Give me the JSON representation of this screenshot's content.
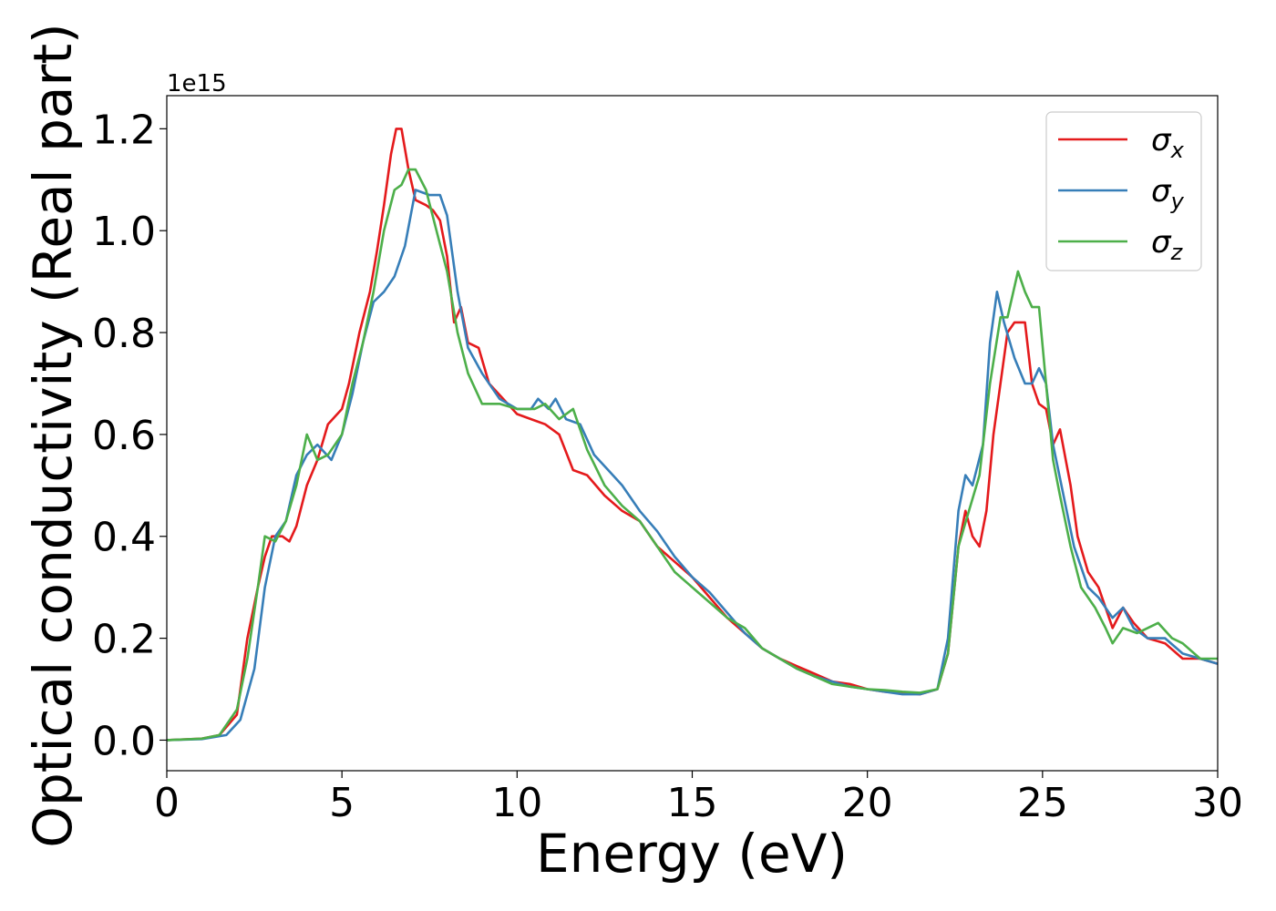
{
  "chart_data": {
    "type": "line",
    "title": "",
    "xlabel": "Energy (eV)",
    "ylabel": "Optical conductivity (Real part)",
    "y_offset_label": "1e15",
    "xlim": [
      0,
      30
    ],
    "ylim": [
      -0.06,
      1.265
    ],
    "xticks": [
      0,
      5,
      10,
      15,
      20,
      25,
      30
    ],
    "xtick_labels": [
      "0",
      "5",
      "10",
      "15",
      "20",
      "25",
      "30"
    ],
    "yticks": [
      0.0,
      0.2,
      0.4,
      0.6,
      0.8,
      1.0,
      1.2
    ],
    "ytick_labels": [
      "0.0",
      "0.2",
      "0.4",
      "0.6",
      "0.8",
      "1.0",
      "1.2"
    ],
    "grid": false,
    "legend_position": "top-right",
    "series": [
      {
        "name": "σx",
        "legend_base": "σ",
        "legend_sub": "x",
        "color": "#e41a1c",
        "points": [
          [
            0,
            0
          ],
          [
            1,
            0.003
          ],
          [
            1.5,
            0.01
          ],
          [
            2,
            0.05
          ],
          [
            2.3,
            0.2
          ],
          [
            2.6,
            0.3
          ],
          [
            2.8,
            0.36
          ],
          [
            3.0,
            0.4
          ],
          [
            3.3,
            0.4
          ],
          [
            3.5,
            0.39
          ],
          [
            3.7,
            0.42
          ],
          [
            4.0,
            0.5
          ],
          [
            4.3,
            0.55
          ],
          [
            4.6,
            0.62
          ],
          [
            5.0,
            0.65
          ],
          [
            5.2,
            0.7
          ],
          [
            5.5,
            0.8
          ],
          [
            5.8,
            0.88
          ],
          [
            6.0,
            0.96
          ],
          [
            6.2,
            1.05
          ],
          [
            6.4,
            1.15
          ],
          [
            6.55,
            1.2
          ],
          [
            6.7,
            1.2
          ],
          [
            6.9,
            1.12
          ],
          [
            7.1,
            1.06
          ],
          [
            7.4,
            1.05
          ],
          [
            7.6,
            1.04
          ],
          [
            7.8,
            1.02
          ],
          [
            8.0,
            0.95
          ],
          [
            8.2,
            0.82
          ],
          [
            8.4,
            0.85
          ],
          [
            8.6,
            0.78
          ],
          [
            8.9,
            0.77
          ],
          [
            9.2,
            0.7
          ],
          [
            9.6,
            0.67
          ],
          [
            10.0,
            0.64
          ],
          [
            10.4,
            0.63
          ],
          [
            10.8,
            0.62
          ],
          [
            11.2,
            0.6
          ],
          [
            11.6,
            0.53
          ],
          [
            12.0,
            0.52
          ],
          [
            12.5,
            0.48
          ],
          [
            13.0,
            0.45
          ],
          [
            13.5,
            0.43
          ],
          [
            14.0,
            0.38
          ],
          [
            14.5,
            0.35
          ],
          [
            15.0,
            0.32
          ],
          [
            15.5,
            0.28
          ],
          [
            16.0,
            0.24
          ],
          [
            16.5,
            0.21
          ],
          [
            17.0,
            0.18
          ],
          [
            17.5,
            0.16
          ],
          [
            18.0,
            0.145
          ],
          [
            18.5,
            0.13
          ],
          [
            19.0,
            0.115
          ],
          [
            19.5,
            0.11
          ],
          [
            20.0,
            0.1
          ],
          [
            20.5,
            0.095
          ],
          [
            21.0,
            0.093
          ],
          [
            21.5,
            0.09
          ],
          [
            22.0,
            0.1
          ],
          [
            22.3,
            0.17
          ],
          [
            22.6,
            0.38
          ],
          [
            22.8,
            0.45
          ],
          [
            23.0,
            0.4
          ],
          [
            23.2,
            0.38
          ],
          [
            23.4,
            0.45
          ],
          [
            23.6,
            0.6
          ],
          [
            23.8,
            0.7
          ],
          [
            24.0,
            0.8
          ],
          [
            24.2,
            0.82
          ],
          [
            24.5,
            0.82
          ],
          [
            24.7,
            0.7
          ],
          [
            24.9,
            0.66
          ],
          [
            25.1,
            0.65
          ],
          [
            25.3,
            0.58
          ],
          [
            25.5,
            0.61
          ],
          [
            25.8,
            0.5
          ],
          [
            26.0,
            0.4
          ],
          [
            26.3,
            0.33
          ],
          [
            26.6,
            0.3
          ],
          [
            27.0,
            0.22
          ],
          [
            27.3,
            0.26
          ],
          [
            27.6,
            0.23
          ],
          [
            28.0,
            0.2
          ],
          [
            28.5,
            0.19
          ],
          [
            29.0,
            0.16
          ],
          [
            29.5,
            0.16
          ],
          [
            30.0,
            0.15
          ]
        ]
      },
      {
        "name": "σy",
        "legend_base": "σ",
        "legend_sub": "y",
        "color": "#377eb8",
        "points": [
          [
            0,
            0
          ],
          [
            1,
            0.002
          ],
          [
            1.7,
            0.01
          ],
          [
            2.1,
            0.04
          ],
          [
            2.5,
            0.14
          ],
          [
            2.8,
            0.3
          ],
          [
            3.1,
            0.4
          ],
          [
            3.4,
            0.43
          ],
          [
            3.7,
            0.52
          ],
          [
            4.0,
            0.56
          ],
          [
            4.3,
            0.58
          ],
          [
            4.7,
            0.55
          ],
          [
            5.0,
            0.6
          ],
          [
            5.3,
            0.68
          ],
          [
            5.6,
            0.78
          ],
          [
            5.9,
            0.86
          ],
          [
            6.2,
            0.88
          ],
          [
            6.5,
            0.91
          ],
          [
            6.8,
            0.97
          ],
          [
            7.1,
            1.08
          ],
          [
            7.5,
            1.07
          ],
          [
            7.8,
            1.07
          ],
          [
            8.0,
            1.03
          ],
          [
            8.3,
            0.88
          ],
          [
            8.6,
            0.77
          ],
          [
            9.0,
            0.72
          ],
          [
            9.5,
            0.67
          ],
          [
            10.0,
            0.65
          ],
          [
            10.4,
            0.65
          ],
          [
            10.6,
            0.67
          ],
          [
            10.9,
            0.65
          ],
          [
            11.1,
            0.67
          ],
          [
            11.4,
            0.63
          ],
          [
            11.8,
            0.62
          ],
          [
            12.2,
            0.56
          ],
          [
            12.6,
            0.53
          ],
          [
            13.0,
            0.5
          ],
          [
            13.5,
            0.45
          ],
          [
            14.0,
            0.41
          ],
          [
            14.5,
            0.36
          ],
          [
            15.0,
            0.32
          ],
          [
            15.5,
            0.29
          ],
          [
            16.0,
            0.25
          ],
          [
            16.5,
            0.21
          ],
          [
            17.0,
            0.18
          ],
          [
            17.5,
            0.16
          ],
          [
            18.0,
            0.14
          ],
          [
            18.5,
            0.125
          ],
          [
            19.0,
            0.115
          ],
          [
            19.5,
            0.105
          ],
          [
            20.0,
            0.1
          ],
          [
            20.5,
            0.095
          ],
          [
            21.0,
            0.09
          ],
          [
            21.5,
            0.09
          ],
          [
            22.0,
            0.1
          ],
          [
            22.3,
            0.2
          ],
          [
            22.6,
            0.45
          ],
          [
            22.8,
            0.52
          ],
          [
            23.0,
            0.5
          ],
          [
            23.3,
            0.58
          ],
          [
            23.5,
            0.78
          ],
          [
            23.7,
            0.88
          ],
          [
            23.9,
            0.82
          ],
          [
            24.2,
            0.75
          ],
          [
            24.5,
            0.7
          ],
          [
            24.7,
            0.7
          ],
          [
            24.9,
            0.73
          ],
          [
            25.1,
            0.7
          ],
          [
            25.3,
            0.58
          ],
          [
            25.6,
            0.48
          ],
          [
            25.9,
            0.38
          ],
          [
            26.3,
            0.3
          ],
          [
            26.6,
            0.28
          ],
          [
            27.0,
            0.24
          ],
          [
            27.3,
            0.26
          ],
          [
            27.6,
            0.22
          ],
          [
            28.0,
            0.2
          ],
          [
            28.5,
            0.2
          ],
          [
            29.0,
            0.17
          ],
          [
            29.5,
            0.16
          ],
          [
            30.0,
            0.15
          ]
        ]
      },
      {
        "name": "σz",
        "legend_base": "σ",
        "legend_sub": "z",
        "color": "#4daf4a",
        "points": [
          [
            0,
            0
          ],
          [
            1,
            0.003
          ],
          [
            1.5,
            0.01
          ],
          [
            2.0,
            0.06
          ],
          [
            2.3,
            0.16
          ],
          [
            2.6,
            0.3
          ],
          [
            2.8,
            0.4
          ],
          [
            3.1,
            0.39
          ],
          [
            3.4,
            0.43
          ],
          [
            3.7,
            0.5
          ],
          [
            4.0,
            0.6
          ],
          [
            4.3,
            0.55
          ],
          [
            4.6,
            0.56
          ],
          [
            5.0,
            0.6
          ],
          [
            5.3,
            0.7
          ],
          [
            5.6,
            0.78
          ],
          [
            5.9,
            0.88
          ],
          [
            6.2,
            1.0
          ],
          [
            6.5,
            1.08
          ],
          [
            6.7,
            1.09
          ],
          [
            6.9,
            1.12
          ],
          [
            7.1,
            1.12
          ],
          [
            7.4,
            1.08
          ],
          [
            7.7,
            1.0
          ],
          [
            8.0,
            0.92
          ],
          [
            8.3,
            0.8
          ],
          [
            8.6,
            0.72
          ],
          [
            9.0,
            0.66
          ],
          [
            9.5,
            0.66
          ],
          [
            10.0,
            0.65
          ],
          [
            10.5,
            0.65
          ],
          [
            10.8,
            0.66
          ],
          [
            11.2,
            0.63
          ],
          [
            11.6,
            0.65
          ],
          [
            12.0,
            0.57
          ],
          [
            12.5,
            0.5
          ],
          [
            13.0,
            0.46
          ],
          [
            13.5,
            0.43
          ],
          [
            14.0,
            0.38
          ],
          [
            14.5,
            0.33
          ],
          [
            15.0,
            0.3
          ],
          [
            15.5,
            0.27
          ],
          [
            16.0,
            0.24
          ],
          [
            16.5,
            0.22
          ],
          [
            17.0,
            0.18
          ],
          [
            17.5,
            0.16
          ],
          [
            18.0,
            0.14
          ],
          [
            18.5,
            0.125
          ],
          [
            19.0,
            0.11
          ],
          [
            19.5,
            0.105
          ],
          [
            20.0,
            0.1
          ],
          [
            20.5,
            0.098
          ],
          [
            21.0,
            0.095
          ],
          [
            21.5,
            0.093
          ],
          [
            22.0,
            0.1
          ],
          [
            22.3,
            0.17
          ],
          [
            22.6,
            0.38
          ],
          [
            22.9,
            0.45
          ],
          [
            23.2,
            0.52
          ],
          [
            23.5,
            0.7
          ],
          [
            23.8,
            0.83
          ],
          [
            24.0,
            0.83
          ],
          [
            24.3,
            0.92
          ],
          [
            24.5,
            0.88
          ],
          [
            24.7,
            0.85
          ],
          [
            24.9,
            0.85
          ],
          [
            25.1,
            0.7
          ],
          [
            25.3,
            0.55
          ],
          [
            25.5,
            0.48
          ],
          [
            25.8,
            0.38
          ],
          [
            26.1,
            0.3
          ],
          [
            26.5,
            0.26
          ],
          [
            26.8,
            0.22
          ],
          [
            27.0,
            0.19
          ],
          [
            27.3,
            0.22
          ],
          [
            27.7,
            0.21
          ],
          [
            28.0,
            0.22
          ],
          [
            28.3,
            0.23
          ],
          [
            28.7,
            0.2
          ],
          [
            29.0,
            0.19
          ],
          [
            29.5,
            0.16
          ],
          [
            30.0,
            0.16
          ]
        ]
      }
    ]
  }
}
